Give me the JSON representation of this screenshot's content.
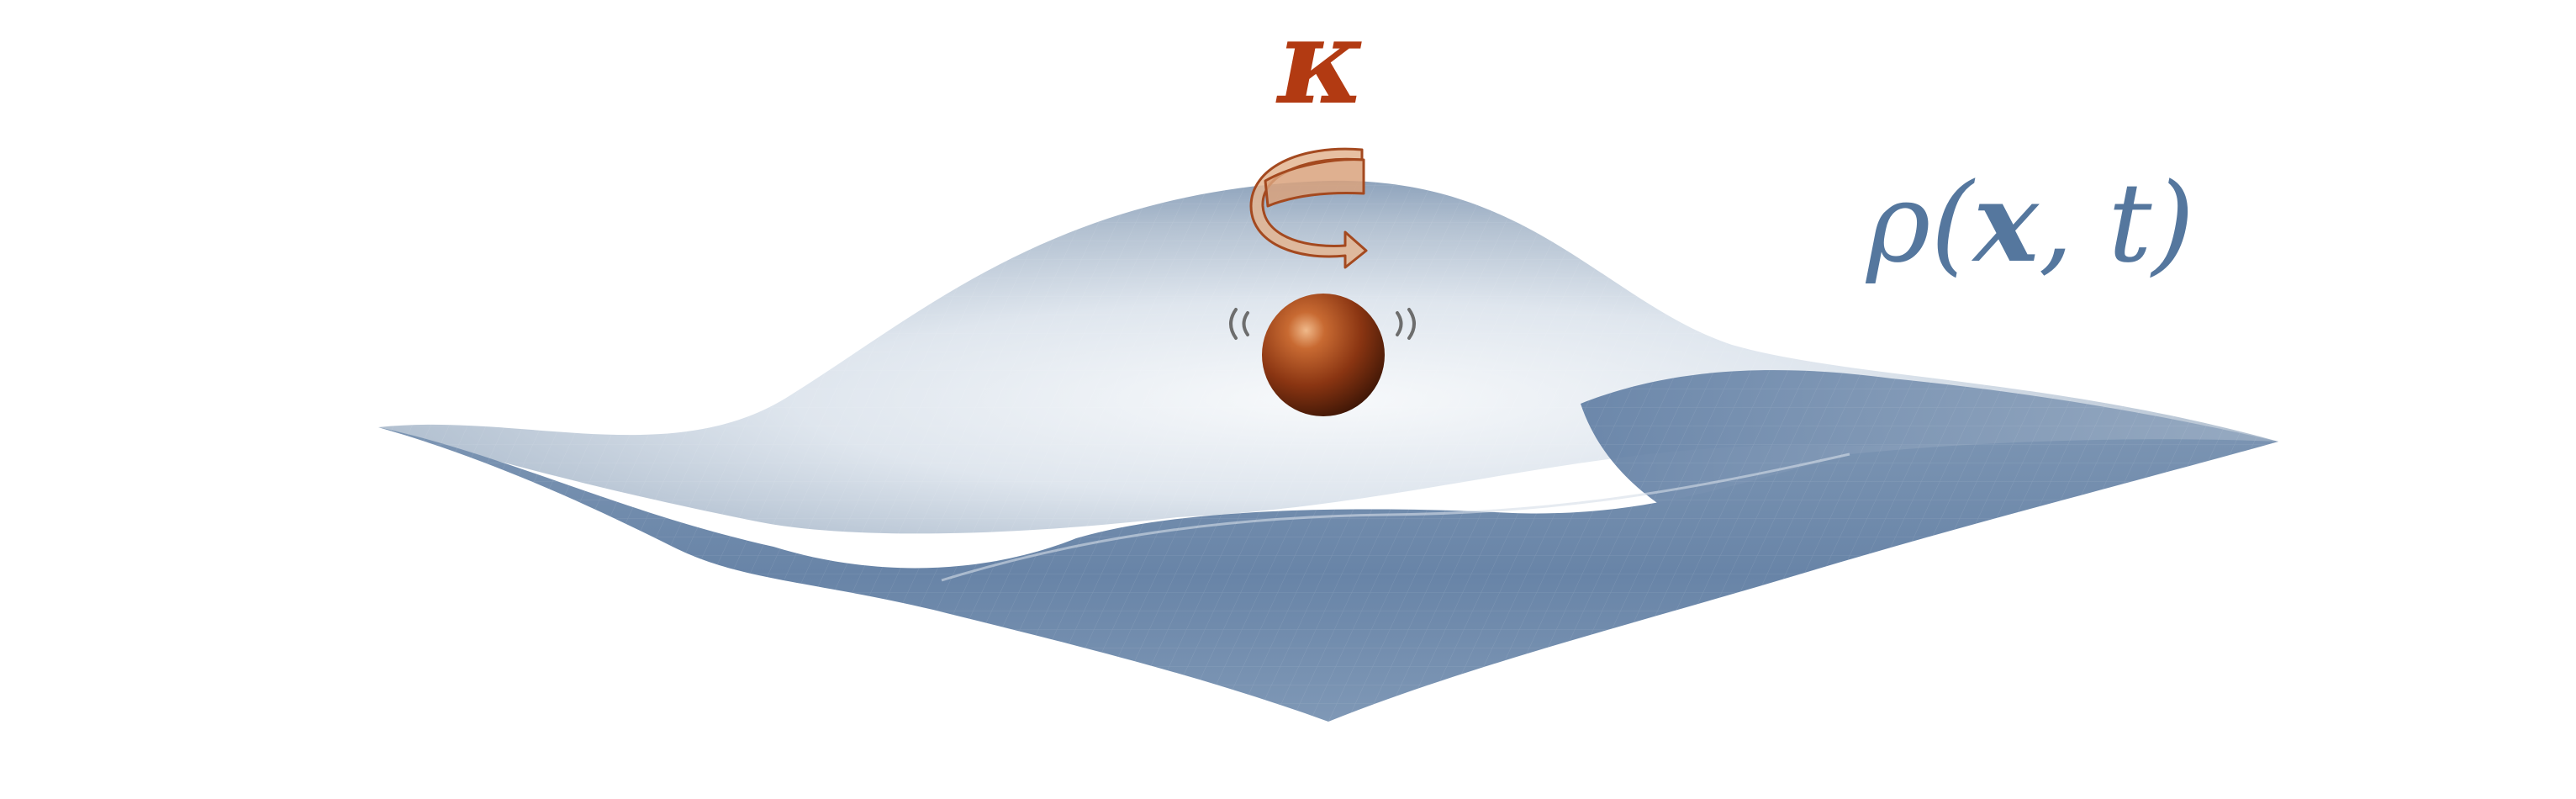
{
  "labels": {
    "kappa": "κ",
    "rho_prefix": "ρ(",
    "rho_x": "x",
    "rho_suffix": ", t)"
  },
  "colors": {
    "kappa": "#b23a12",
    "rho": "#55779e",
    "surface_light": "#f4f6f9",
    "surface_mid": "#aebccc",
    "surface_dark": "#5c7aa0",
    "sphere": "#8a3512",
    "arrow_fill": "#e3b592",
    "arrow_stroke": "#a4491f"
  },
  "icons": {
    "rotation": "curved-arrow-icon",
    "vibration": "vibration-arcs-icon"
  }
}
